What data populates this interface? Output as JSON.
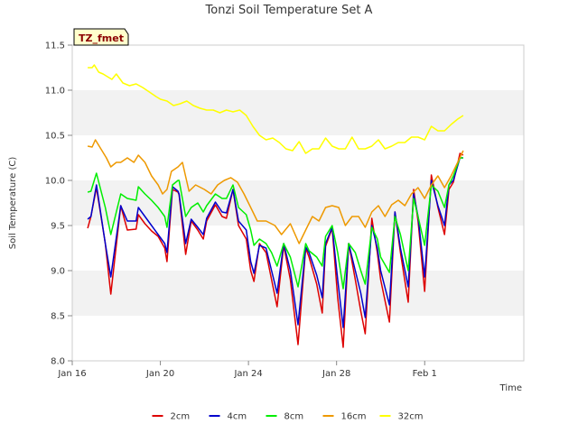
{
  "chart_data": {
    "type": "line",
    "title": "Tonzi Soil Temperature Set A",
    "xlabel": "Time",
    "ylabel": "Soil Temperature (C)",
    "badge": "TZ_fmet",
    "ylim": [
      8.0,
      11.5
    ],
    "xlim": [
      0,
      20.5
    ],
    "yticks": [
      8.0,
      8.5,
      9.0,
      9.5,
      10.0,
      10.5,
      11.0,
      11.5
    ],
    "ytick_labels": [
      "8.0",
      "8.5",
      "9.0",
      "9.5",
      "10.0",
      "10.5",
      "11.0",
      "11.5"
    ],
    "xticks": [
      0,
      4,
      8,
      12,
      16
    ],
    "xtick_labels": [
      "Jan 16",
      "Jan 20",
      "Jan 24",
      "Jan 28",
      "Feb 1"
    ],
    "legend_position": "bottom-center",
    "series": [
      {
        "name": "2cm",
        "color": "#dd0000",
        "x": [
          0.7,
          0.85,
          1.1,
          1.5,
          1.75,
          2.2,
          2.5,
          2.9,
          3.0,
          3.3,
          3.6,
          3.9,
          4.2,
          4.3,
          4.55,
          4.8,
          4.85,
          5.15,
          5.4,
          5.7,
          5.95,
          6.1,
          6.5,
          6.8,
          7.0,
          7.3,
          7.55,
          7.9,
          8.1,
          8.25,
          8.5,
          8.8,
          9.05,
          9.3,
          9.6,
          9.9,
          10.25,
          10.6,
          10.75,
          11.1,
          11.35,
          11.5,
          11.8,
          12.05,
          12.3,
          12.55,
          12.85,
          13.1,
          13.3,
          13.6,
          13.85,
          14.0,
          14.4,
          14.65,
          14.9,
          15.25,
          15.5,
          15.7,
          16.0,
          16.3,
          16.6,
          16.9,
          17.1,
          17.3,
          17.6,
          17.75
        ],
        "y": [
          9.47,
          9.6,
          9.92,
          9.3,
          8.74,
          9.72,
          9.45,
          9.46,
          9.62,
          9.52,
          9.44,
          9.38,
          9.25,
          9.1,
          9.9,
          9.87,
          9.84,
          9.18,
          9.55,
          9.45,
          9.35,
          9.55,
          9.73,
          9.6,
          9.58,
          9.9,
          9.5,
          9.35,
          9.0,
          8.88,
          9.3,
          9.2,
          8.9,
          8.6,
          9.28,
          8.9,
          8.18,
          9.25,
          9.15,
          8.85,
          8.53,
          9.27,
          9.47,
          8.7,
          8.15,
          9.3,
          8.9,
          8.55,
          8.3,
          9.58,
          9.2,
          8.9,
          8.43,
          9.65,
          9.2,
          8.65,
          9.9,
          9.55,
          8.77,
          10.06,
          9.7,
          9.4,
          9.9,
          9.98,
          10.3,
          10.28
        ]
      },
      {
        "name": "4cm",
        "color": "#0000cc",
        "x": [
          0.7,
          0.85,
          1.1,
          1.5,
          1.75,
          2.2,
          2.5,
          2.9,
          3.0,
          3.3,
          3.6,
          3.9,
          4.2,
          4.3,
          4.55,
          4.8,
          4.85,
          5.15,
          5.4,
          5.7,
          5.95,
          6.1,
          6.5,
          6.8,
          7.0,
          7.3,
          7.55,
          7.9,
          8.1,
          8.25,
          8.5,
          8.8,
          9.05,
          9.3,
          9.6,
          9.9,
          10.25,
          10.6,
          10.75,
          11.1,
          11.35,
          11.5,
          11.8,
          12.05,
          12.3,
          12.55,
          12.85,
          13.1,
          13.3,
          13.6,
          13.85,
          14.0,
          14.4,
          14.65,
          14.9,
          15.25,
          15.5,
          15.7,
          16.0,
          16.3,
          16.6,
          16.9,
          17.1,
          17.3,
          17.6,
          17.75
        ],
        "y": [
          9.57,
          9.6,
          9.95,
          9.3,
          8.93,
          9.72,
          9.55,
          9.55,
          9.7,
          9.6,
          9.5,
          9.4,
          9.3,
          9.2,
          9.93,
          9.88,
          9.85,
          9.3,
          9.57,
          9.48,
          9.4,
          9.58,
          9.76,
          9.65,
          9.64,
          9.9,
          9.55,
          9.45,
          9.1,
          8.97,
          9.28,
          9.25,
          9.0,
          8.75,
          9.3,
          9.0,
          8.4,
          9.26,
          9.2,
          8.95,
          8.7,
          9.3,
          9.48,
          8.9,
          8.37,
          9.3,
          9.0,
          8.75,
          8.48,
          9.5,
          9.25,
          9.0,
          8.62,
          9.65,
          9.25,
          8.82,
          9.85,
          9.6,
          8.93,
          10.0,
          9.72,
          9.5,
          9.95,
          10.0,
          10.25,
          10.25
        ]
      },
      {
        "name": "8cm",
        "color": "#00ee00",
        "x": [
          0.7,
          0.85,
          1.1,
          1.5,
          1.75,
          2.2,
          2.5,
          2.9,
          3.0,
          3.3,
          3.6,
          3.9,
          4.2,
          4.3,
          4.55,
          4.8,
          4.85,
          5.15,
          5.4,
          5.7,
          5.95,
          6.1,
          6.5,
          6.8,
          7.0,
          7.3,
          7.55,
          7.9,
          8.1,
          8.25,
          8.5,
          8.8,
          9.05,
          9.3,
          9.6,
          9.9,
          10.25,
          10.6,
          10.75,
          11.1,
          11.35,
          11.5,
          11.8,
          12.05,
          12.3,
          12.55,
          12.85,
          13.1,
          13.3,
          13.6,
          13.85,
          14.0,
          14.4,
          14.65,
          14.9,
          15.25,
          15.5,
          15.7,
          16.0,
          16.3,
          16.6,
          16.9,
          17.1,
          17.3,
          17.6,
          17.75
        ],
        "y": [
          9.87,
          9.88,
          10.08,
          9.7,
          9.4,
          9.85,
          9.8,
          9.78,
          9.93,
          9.85,
          9.78,
          9.7,
          9.6,
          9.48,
          9.95,
          10.0,
          10.0,
          9.6,
          9.7,
          9.75,
          9.65,
          9.72,
          9.85,
          9.8,
          9.8,
          9.95,
          9.7,
          9.62,
          9.45,
          9.28,
          9.35,
          9.3,
          9.2,
          9.05,
          9.3,
          9.15,
          8.82,
          9.3,
          9.22,
          9.15,
          9.05,
          9.38,
          9.5,
          9.2,
          8.8,
          9.3,
          9.2,
          9.0,
          8.85,
          9.48,
          9.35,
          9.15,
          8.98,
          9.6,
          9.4,
          9.0,
          9.8,
          9.6,
          9.28,
          9.95,
          9.88,
          9.7,
          9.95,
          10.05,
          10.25,
          10.25
        ]
      },
      {
        "name": "16cm",
        "color": "#ee9900",
        "x": [
          0.7,
          0.9,
          1.05,
          1.3,
          1.55,
          1.75,
          2.0,
          2.2,
          2.5,
          2.8,
          3.0,
          3.3,
          3.6,
          3.9,
          4.1,
          4.3,
          4.5,
          4.8,
          5.0,
          5.3,
          5.6,
          6.0,
          6.3,
          6.6,
          6.9,
          7.2,
          7.5,
          7.8,
          8.1,
          8.4,
          8.8,
          9.2,
          9.5,
          9.9,
          10.3,
          10.6,
          10.9,
          11.2,
          11.5,
          11.8,
          12.1,
          12.4,
          12.7,
          13.0,
          13.3,
          13.6,
          13.9,
          14.2,
          14.5,
          14.8,
          15.1,
          15.4,
          15.7,
          16.0,
          16.3,
          16.6,
          16.9,
          17.2,
          17.5,
          17.75
        ],
        "y": [
          10.38,
          10.37,
          10.45,
          10.35,
          10.25,
          10.15,
          10.2,
          10.2,
          10.25,
          10.2,
          10.28,
          10.2,
          10.05,
          9.95,
          9.85,
          9.9,
          10.1,
          10.15,
          10.2,
          9.88,
          9.95,
          9.9,
          9.85,
          9.95,
          10.0,
          10.03,
          9.98,
          9.85,
          9.7,
          9.55,
          9.55,
          9.5,
          9.4,
          9.52,
          9.3,
          9.45,
          9.6,
          9.55,
          9.7,
          9.72,
          9.7,
          9.5,
          9.6,
          9.6,
          9.48,
          9.65,
          9.72,
          9.6,
          9.73,
          9.78,
          9.72,
          9.85,
          9.92,
          9.8,
          9.95,
          10.05,
          9.92,
          10.05,
          10.2,
          10.33
        ]
      },
      {
        "name": "32cm",
        "color": "#ffff00",
        "x": [
          0.7,
          0.9,
          1.0,
          1.2,
          1.4,
          1.6,
          1.8,
          2.0,
          2.3,
          2.6,
          2.9,
          3.2,
          3.5,
          3.8,
          4.0,
          4.3,
          4.6,
          4.9,
          5.2,
          5.5,
          5.8,
          6.1,
          6.4,
          6.7,
          7.0,
          7.3,
          7.6,
          7.9,
          8.2,
          8.5,
          8.8,
          9.1,
          9.4,
          9.7,
          10.0,
          10.3,
          10.6,
          10.9,
          11.2,
          11.5,
          11.8,
          12.1,
          12.4,
          12.7,
          13.0,
          13.3,
          13.6,
          13.9,
          14.2,
          14.5,
          14.8,
          15.1,
          15.4,
          15.7,
          16.0,
          16.3,
          16.6,
          16.9,
          17.2,
          17.5,
          17.75
        ],
        "y": [
          11.25,
          11.25,
          11.28,
          11.2,
          11.18,
          11.15,
          11.12,
          11.18,
          11.08,
          11.05,
          11.07,
          11.03,
          10.98,
          10.93,
          10.9,
          10.88,
          10.83,
          10.85,
          10.88,
          10.83,
          10.8,
          10.78,
          10.78,
          10.75,
          10.78,
          10.76,
          10.78,
          10.72,
          10.6,
          10.5,
          10.45,
          10.47,
          10.42,
          10.35,
          10.33,
          10.43,
          10.3,
          10.35,
          10.35,
          10.47,
          10.38,
          10.35,
          10.35,
          10.48,
          10.35,
          10.35,
          10.38,
          10.45,
          10.35,
          10.38,
          10.42,
          10.42,
          10.48,
          10.48,
          10.45,
          10.6,
          10.55,
          10.55,
          10.62,
          10.68,
          10.72
        ]
      }
    ]
  }
}
